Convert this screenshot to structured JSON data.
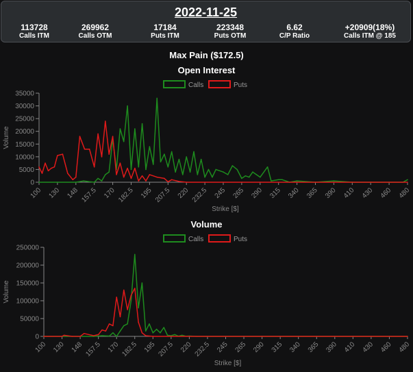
{
  "header": {
    "date": "2022-11-25",
    "stats": [
      {
        "value": "113728",
        "label": "Calls ITM"
      },
      {
        "value": "269962",
        "label": "Calls OTM"
      },
      {
        "value": "17184",
        "label": "Puts ITM"
      },
      {
        "value": "223348",
        "label": "Puts OTM"
      },
      {
        "value": "6.62",
        "label": "C/P Ratio"
      },
      {
        "value": "+20909(18%)",
        "label": "Calls ITM @ 185"
      }
    ]
  },
  "max_pain_label": "Max Pain ($172.5)",
  "colors": {
    "calls": "#1e8c1e",
    "puts": "#e01a1a",
    "axis": "#888888",
    "background": "#111112"
  },
  "chart_data": [
    {
      "type": "line",
      "title": "Open Interest",
      "xlabel": "Strike [$]",
      "ylabel": "Volume",
      "ylim": [
        0,
        35000
      ],
      "yticks": [
        0,
        5000,
        10000,
        15000,
        20000,
        25000,
        30000,
        35000
      ],
      "xtick_labels": [
        "100",
        "130",
        "148",
        "157.5",
        "170",
        "182.5",
        "195",
        "207.5",
        "220",
        "232.5",
        "245",
        "265",
        "290",
        "315",
        "340",
        "365",
        "390",
        "410",
        "430",
        "460",
        "480"
      ],
      "legend": "top-center",
      "series": [
        {
          "name": "Calls",
          "values": [
            [
              100,
              0
            ],
            [
              130,
              0
            ],
            [
              148,
              0
            ],
            [
              152,
              500
            ],
            [
              155,
              200
            ],
            [
              157.5,
              0
            ],
            [
              160,
              1500
            ],
            [
              162.5,
              500
            ],
            [
              165,
              3000
            ],
            [
              167.5,
              4000
            ],
            [
              170,
              17000
            ],
            [
              172.5,
              5000
            ],
            [
              175,
              21000
            ],
            [
              177.5,
              16000
            ],
            [
              180,
              30000
            ],
            [
              182.5,
              5000
            ],
            [
              185,
              21000
            ],
            [
              187.5,
              6000
            ],
            [
              190,
              23000
            ],
            [
              192.5,
              5000
            ],
            [
              195,
              14000
            ],
            [
              197.5,
              7000
            ],
            [
              200,
              33000
            ],
            [
              202.5,
              8000
            ],
            [
              205,
              11000
            ],
            [
              207.5,
              6000
            ],
            [
              210,
              12000
            ],
            [
              212.5,
              4000
            ],
            [
              215,
              9000
            ],
            [
              217.5,
              3000
            ],
            [
              220,
              10000
            ],
            [
              222.5,
              4000
            ],
            [
              225,
              12000
            ],
            [
              227.5,
              3000
            ],
            [
              230,
              9000
            ],
            [
              232.5,
              2000
            ],
            [
              235,
              5000
            ],
            [
              237.5,
              2000
            ],
            [
              240,
              5000
            ],
            [
              245,
              4000
            ],
            [
              250,
              3000
            ],
            [
              255,
              6500
            ],
            [
              260,
              5000
            ],
            [
              265,
              1500
            ],
            [
              270,
              2500
            ],
            [
              275,
              2000
            ],
            [
              280,
              4000
            ],
            [
              285,
              3000
            ],
            [
              290,
              2000
            ],
            [
              300,
              6000
            ],
            [
              305,
              500
            ],
            [
              315,
              1000
            ],
            [
              320,
              1000
            ],
            [
              330,
              0
            ],
            [
              340,
              500
            ],
            [
              365,
              0
            ],
            [
              390,
              500
            ],
            [
              410,
              0
            ],
            [
              430,
              0
            ],
            [
              460,
              0
            ],
            [
              475,
              0
            ],
            [
              480,
              1000
            ]
          ]
        },
        {
          "name": "Puts",
          "values": [
            [
              100,
              6000
            ],
            [
              105,
              3500
            ],
            [
              110,
              7500
            ],
            [
              115,
              4500
            ],
            [
              120,
              5500
            ],
            [
              125,
              6000
            ],
            [
              130,
              10500
            ],
            [
              135,
              11000
            ],
            [
              140,
              3500
            ],
            [
              145,
              1000
            ],
            [
              148,
              2000
            ],
            [
              150,
              18000
            ],
            [
              152.5,
              13000
            ],
            [
              155,
              13000
            ],
            [
              157.5,
              6000
            ],
            [
              160,
              19000
            ],
            [
              162.5,
              10000
            ],
            [
              165,
              24000
            ],
            [
              167.5,
              11000
            ],
            [
              170,
              18000
            ],
            [
              172.5,
              3000
            ],
            [
              175,
              7500
            ],
            [
              177.5,
              2000
            ],
            [
              180,
              5500
            ],
            [
              182.5,
              1500
            ],
            [
              185,
              5500
            ],
            [
              187.5,
              500
            ],
            [
              190,
              2500
            ],
            [
              192.5,
              500
            ],
            [
              195,
              3000
            ],
            [
              200,
              2000
            ],
            [
              205,
              1500
            ],
            [
              207.5,
              200
            ],
            [
              210,
              1000
            ],
            [
              215,
              300
            ],
            [
              220,
              0
            ],
            [
              480,
              0
            ]
          ]
        }
      ]
    },
    {
      "type": "line",
      "title": "Volume",
      "xlabel": "Strike [$]",
      "ylabel": "Volume",
      "ylim": [
        0,
        250000
      ],
      "yticks": [
        0,
        50000,
        100000,
        150000,
        200000,
        250000
      ],
      "xtick_labels": [
        "100",
        "130",
        "148",
        "157.5",
        "170",
        "182.5",
        "195",
        "207.5",
        "220",
        "232.5",
        "245",
        "265",
        "290",
        "315",
        "340",
        "365",
        "390",
        "410",
        "430",
        "460",
        "480"
      ],
      "legend": "top-center",
      "series": [
        {
          "name": "Calls",
          "values": [
            [
              100,
              0
            ],
            [
              130,
              0
            ],
            [
              148,
              0
            ],
            [
              155,
              0
            ],
            [
              160,
              2000
            ],
            [
              165,
              1000
            ],
            [
              167.5,
              10000
            ],
            [
              170,
              0
            ],
            [
              172.5,
              15000
            ],
            [
              175,
              30000
            ],
            [
              177.5,
              35000
            ],
            [
              180,
              100000
            ],
            [
              182.5,
              230000
            ],
            [
              185,
              80000
            ],
            [
              187.5,
              150000
            ],
            [
              190,
              15000
            ],
            [
              192.5,
              35000
            ],
            [
              195,
              10000
            ],
            [
              197.5,
              20000
            ],
            [
              200,
              10000
            ],
            [
              202.5,
              25000
            ],
            [
              205,
              3000
            ],
            [
              207.5,
              2000
            ],
            [
              210,
              5000
            ],
            [
              212.5,
              500
            ],
            [
              215,
              3000
            ],
            [
              217.5,
              500
            ],
            [
              220,
              1000
            ],
            [
              225,
              0
            ],
            [
              480,
              0
            ]
          ]
        },
        {
          "name": "Puts",
          "values": [
            [
              100,
              0
            ],
            [
              130,
              0
            ],
            [
              132,
              3000
            ],
            [
              140,
              0
            ],
            [
              148,
              0
            ],
            [
              150,
              8000
            ],
            [
              155,
              2000
            ],
            [
              157.5,
              5000
            ],
            [
              160,
              18000
            ],
            [
              162.5,
              15000
            ],
            [
              165,
              35000
            ],
            [
              167.5,
              30000
            ],
            [
              170,
              110000
            ],
            [
              172.5,
              55000
            ],
            [
              175,
              130000
            ],
            [
              177.5,
              75000
            ],
            [
              180,
              115000
            ],
            [
              182.5,
              135000
            ],
            [
              185,
              40000
            ],
            [
              187.5,
              10000
            ],
            [
              190,
              2000
            ],
            [
              195,
              0
            ],
            [
              480,
              0
            ]
          ]
        }
      ]
    }
  ]
}
